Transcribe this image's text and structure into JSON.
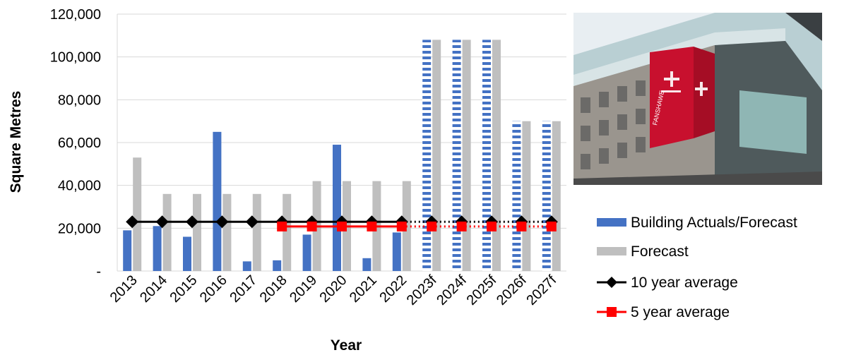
{
  "chart_data": {
    "type": "bar",
    "title": "",
    "xlabel": "Year",
    "ylabel": "Square Metres",
    "ylim": [
      0,
      120000
    ],
    "y_ticks": [
      0,
      20000,
      40000,
      60000,
      80000,
      100000,
      120000
    ],
    "y_tick_labels": [
      "-",
      "20,000",
      "40,000",
      "60,000",
      "80,000",
      "100,000",
      "120,000"
    ],
    "grid": true,
    "legend_position": "bottom-right",
    "categories": [
      "2013",
      "2014",
      "2015",
      "2016",
      "2017",
      "2018",
      "2019",
      "2020",
      "2021",
      "2022",
      "2023f",
      "2024f",
      "2025f",
      "2026f",
      "2027f"
    ],
    "series": [
      {
        "name": "Building Actuals/Forecast",
        "kind": "bar",
        "color": "#4472C4",
        "pattern_from_index": 10,
        "values": [
          19000,
          21000,
          16000,
          65000,
          4500,
          5000,
          17000,
          59000,
          6000,
          18000,
          108000,
          108000,
          108000,
          70000,
          70000
        ]
      },
      {
        "name": "Forecast",
        "kind": "bar",
        "color": "#BFBFBF",
        "values": [
          53000,
          36000,
          36000,
          36000,
          36000,
          36000,
          42000,
          42000,
          42000,
          42000,
          108000,
          108000,
          108000,
          70000,
          70000
        ]
      },
      {
        "name": "10 year average",
        "kind": "line",
        "marker": "diamond",
        "color": "#000000",
        "dotted_from_index": 10,
        "values": [
          23000,
          23000,
          23000,
          23000,
          23000,
          23000,
          23000,
          23000,
          23000,
          23000,
          23000,
          23000,
          23000,
          23000,
          23000
        ]
      },
      {
        "name": "5 year average",
        "kind": "line",
        "marker": "square",
        "color": "#FF0000",
        "dotted_from_index": 10,
        "values": [
          null,
          null,
          null,
          null,
          null,
          20800,
          20800,
          20800,
          20800,
          20800,
          20800,
          20800,
          20800,
          20800,
          20800
        ]
      }
    ]
  },
  "photo": {
    "subject": "building with red Fanshawe banner",
    "banner_text": "FANSHAWE"
  }
}
